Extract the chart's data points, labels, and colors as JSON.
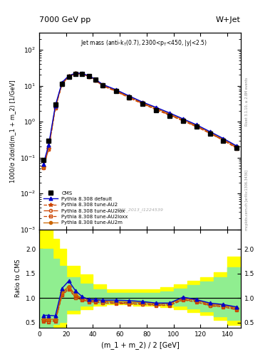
{
  "title_left": "7000 GeV pp",
  "title_right": "W+Jet",
  "annotation": "Jet mass (anti-k$_T$(0.7), 2300<p$_T$<450, |y|<2.5)",
  "watermark": "CMS_2013_I1224539",
  "rivet_text": "Rivet 3.1.10, ≥ 2.8M events",
  "mcplots_text": "mcplots.cern.ch [arXiv:1306.3436]",
  "xlabel": "(m_1 + m_2) / 2 [GeV]",
  "ylabel_main": "1000/σ 2dσ/d(m_1 + m_2) [1/GeV]",
  "ylabel_ratio": "Ratio to CMS",
  "xlim": [
    0,
    150
  ],
  "ylim_main": [
    0.001,
    300
  ],
  "ylim_ratio": [
    0.4,
    2.4
  ],
  "ratio_yticks": [
    0.5,
    1.0,
    1.5,
    2.0
  ],
  "x_data": [
    3,
    7,
    12,
    17,
    22,
    27,
    32,
    37,
    42,
    47,
    57,
    67,
    77,
    87,
    97,
    107,
    117,
    127,
    137,
    147
  ],
  "cms_y": [
    0.085,
    0.3,
    3.0,
    11.5,
    17.5,
    21.5,
    21.0,
    18.5,
    14.5,
    10.5,
    7.2,
    4.8,
    3.2,
    2.1,
    1.45,
    1.05,
    0.72,
    0.47,
    0.3,
    0.19
  ],
  "pythia_default_y": [
    0.065,
    0.22,
    2.8,
    12.5,
    19.0,
    22.5,
    22.0,
    19.0,
    15.0,
    11.0,
    7.8,
    5.2,
    3.5,
    2.5,
    1.75,
    1.2,
    0.82,
    0.53,
    0.34,
    0.21
  ],
  "pythia_AU2_y": [
    0.055,
    0.18,
    2.5,
    11.5,
    18.5,
    22.0,
    21.5,
    18.5,
    14.5,
    10.5,
    7.3,
    4.9,
    3.3,
    2.3,
    1.6,
    1.1,
    0.76,
    0.49,
    0.31,
    0.19
  ],
  "pythia_AU2lox_y": [
    0.053,
    0.17,
    2.4,
    11.2,
    18.2,
    21.8,
    21.2,
    18.2,
    14.2,
    10.2,
    7.1,
    4.7,
    3.2,
    2.2,
    1.55,
    1.07,
    0.74,
    0.48,
    0.3,
    0.19
  ],
  "pythia_AU2loxx_y": [
    0.052,
    0.17,
    2.4,
    11.0,
    18.0,
    21.5,
    21.0,
    18.0,
    14.0,
    10.0,
    7.0,
    4.6,
    3.1,
    2.15,
    1.5,
    1.05,
    0.72,
    0.47,
    0.3,
    0.18
  ],
  "pythia_AU2m_y": [
    0.058,
    0.2,
    2.6,
    11.8,
    18.8,
    22.2,
    21.8,
    18.8,
    14.8,
    10.8,
    7.5,
    5.0,
    3.4,
    2.35,
    1.65,
    1.13,
    0.78,
    0.5,
    0.32,
    0.2
  ],
  "ratio_default": [
    0.65,
    0.65,
    0.64,
    1.2,
    1.35,
    1.15,
    1.03,
    0.97,
    0.97,
    0.96,
    0.96,
    0.95,
    0.93,
    0.9,
    0.9,
    1.02,
    0.97,
    0.9,
    0.87,
    0.82
  ],
  "ratio_AU2": [
    0.56,
    0.55,
    0.56,
    1.1,
    1.22,
    1.05,
    0.99,
    0.95,
    0.95,
    0.93,
    0.92,
    0.91,
    0.9,
    0.88,
    0.88,
    0.99,
    0.95,
    0.87,
    0.85,
    0.79
  ],
  "ratio_AU2lox": [
    0.54,
    0.53,
    0.54,
    1.07,
    1.2,
    1.03,
    0.97,
    0.93,
    0.93,
    0.91,
    0.9,
    0.89,
    0.88,
    0.86,
    0.86,
    0.97,
    0.93,
    0.85,
    0.83,
    0.77
  ],
  "ratio_AU2loxx": [
    0.53,
    0.52,
    0.53,
    1.06,
    1.18,
    1.01,
    0.96,
    0.92,
    0.92,
    0.9,
    0.89,
    0.88,
    0.87,
    0.85,
    0.85,
    0.96,
    0.92,
    0.84,
    0.82,
    0.76
  ],
  "ratio_AU2m": [
    0.58,
    0.57,
    0.57,
    1.12,
    1.24,
    1.07,
    1.0,
    0.96,
    0.96,
    0.94,
    0.93,
    0.92,
    0.91,
    0.89,
    0.89,
    1.0,
    0.96,
    0.88,
    0.86,
    0.8
  ],
  "band_x_edges": [
    0,
    5,
    10,
    15,
    20,
    30,
    40,
    50,
    70,
    90,
    100,
    110,
    120,
    130,
    140,
    150
  ],
  "band_yellow_lo": [
    0.28,
    0.28,
    0.35,
    0.4,
    0.68,
    0.78,
    0.84,
    0.87,
    0.84,
    0.82,
    0.78,
    0.72,
    0.66,
    0.55,
    0.45,
    0.45
  ],
  "band_yellow_hi": [
    2.5,
    2.5,
    2.2,
    2.0,
    1.65,
    1.48,
    1.28,
    1.18,
    1.18,
    1.22,
    1.28,
    1.35,
    1.42,
    1.52,
    1.85,
    1.85
  ],
  "band_green_lo": [
    0.38,
    0.38,
    0.47,
    0.52,
    0.76,
    0.84,
    0.89,
    0.91,
    0.89,
    0.87,
    0.84,
    0.79,
    0.73,
    0.63,
    0.56,
    0.56
  ],
  "band_green_hi": [
    2.0,
    2.0,
    1.8,
    1.65,
    1.42,
    1.3,
    1.18,
    1.1,
    1.1,
    1.14,
    1.2,
    1.27,
    1.34,
    1.42,
    1.62,
    1.62
  ],
  "color_default": "#0000cc",
  "color_AU2": "#cc4400",
  "color_AU2lox": "#cc4400",
  "color_AU2loxx": "#cc4400",
  "color_AU2m": "#cc6600",
  "color_cms": "#000000",
  "bg_color": "#ffffff"
}
